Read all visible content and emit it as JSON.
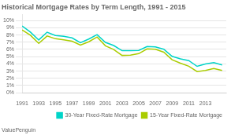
{
  "chart_data": {
    "type": "line",
    "title": "Historical Mortgage Rates by Term Length, 1991 - 2015",
    "annotations": [
      "ValuePenguin"
    ],
    "x": [
      1991,
      1992,
      1993,
      1994,
      1995,
      1996,
      1997,
      1998,
      1999,
      2000,
      2001,
      2002,
      2003,
      2004,
      2005,
      2006,
      2007,
      2008,
      2009,
      2010,
      2011,
      2012,
      2013,
      2014,
      2015
    ],
    "series": [
      {
        "name": "30-Year Fixed-Rate Mortgage",
        "color": "#00d4c8",
        "values": [
          9.25,
          8.4,
          7.31,
          8.38,
          7.93,
          7.81,
          7.6,
          6.94,
          7.44,
          8.05,
          6.97,
          6.54,
          5.83,
          5.84,
          5.87,
          6.41,
          6.34,
          6.03,
          5.04,
          4.69,
          4.45,
          3.66,
          3.98,
          4.17,
          3.85
        ]
      },
      {
        "name": "15-Year Fixed-Rate Mortgage",
        "color": "#aacc00",
        "values": [
          8.7,
          7.96,
          6.83,
          7.86,
          7.48,
          7.32,
          7.13,
          6.59,
          7.06,
          7.72,
          6.5,
          5.98,
          5.17,
          5.21,
          5.42,
          6.08,
          6.03,
          5.62,
          4.57,
          4.1,
          3.68,
          2.93,
          3.1,
          3.36,
          3.09
        ]
      }
    ],
    "xlim": [
      1991,
      2015.5
    ],
    "xticks": [
      1991,
      1993,
      1995,
      1997,
      1999,
      2001,
      2003,
      2005,
      2007,
      2009,
      2011,
      2013
    ],
    "ylim": [
      0,
      10.8
    ],
    "yticks": [
      {
        "value": 0,
        "label": "0%"
      },
      {
        "value": 1,
        "label": "1%"
      },
      {
        "value": 2,
        "label": "2%"
      },
      {
        "value": 3,
        "label": "3%"
      },
      {
        "value": 4,
        "label": "4%"
      },
      {
        "value": 5,
        "label": "5%"
      },
      {
        "value": 6,
        "label": "6%"
      },
      {
        "value": 7,
        "label": "7%"
      },
      {
        "value": 8,
        "label": "8%"
      },
      {
        "value": 9,
        "label": "9%"
      },
      {
        "value": 10,
        "label": "10%"
      }
    ],
    "grid": "y",
    "legend": "lower right",
    "marker": "none"
  }
}
